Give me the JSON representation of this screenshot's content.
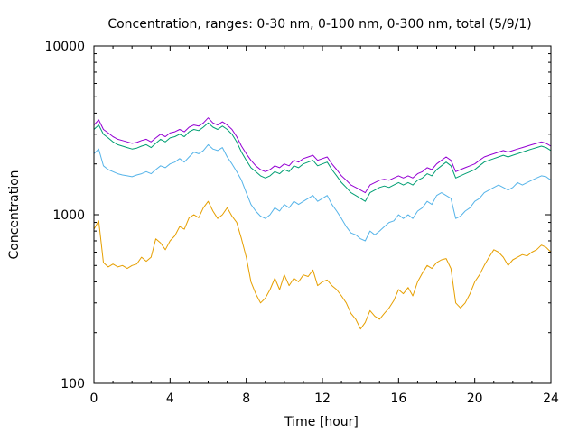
{
  "chart_data": {
    "type": "line",
    "title": "Concentration, ranges: 0-30 nm, 0-100 nm, 0-300 nm, total (5/9/1)",
    "xlabel": "Time [hour]",
    "ylabel": "Concentration",
    "xlim": [
      0,
      24
    ],
    "ylim": [
      100,
      10000
    ],
    "yscale": "log",
    "grid": false,
    "xticks": [
      0,
      4,
      8,
      12,
      16,
      20,
      24
    ],
    "xtick_labels": [
      "0",
      "4",
      "8",
      "12",
      "16",
      "20",
      "24"
    ],
    "yticks": [
      100,
      1000,
      10000
    ],
    "ytick_labels": [
      "100",
      "1000",
      "10000"
    ],
    "series": [
      {
        "color": "#e69f00",
        "x": [
          0,
          0.25,
          0.5,
          0.75,
          1,
          1.25,
          1.5,
          1.75,
          2,
          2.25,
          2.5,
          2.75,
          3,
          3.25,
          3.5,
          3.75,
          4,
          4.25,
          4.5,
          4.75,
          5,
          5.25,
          5.5,
          5.75,
          6,
          6.25,
          6.5,
          6.75,
          7,
          7.25,
          7.5,
          7.75,
          8,
          8.25,
          8.5,
          8.75,
          9,
          9.25,
          9.5,
          9.75,
          10,
          10.25,
          10.5,
          10.75,
          11,
          11.25,
          11.5,
          11.75,
          12,
          12.25,
          12.5,
          12.75,
          13,
          13.25,
          13.5,
          13.75,
          14,
          14.25,
          14.5,
          14.75,
          15,
          15.25,
          15.5,
          15.75,
          16,
          16.25,
          16.5,
          16.75,
          17,
          17.25,
          17.5,
          17.75,
          18,
          18.25,
          18.5,
          18.75,
          19,
          19.25,
          19.5,
          19.75,
          20,
          20.25,
          20.5,
          20.75,
          21,
          21.25,
          21.5,
          21.75,
          22,
          22.25,
          22.5,
          22.75,
          23,
          23.25,
          23.5,
          23.75,
          24
        ],
        "y": [
          820,
          920,
          520,
          490,
          510,
          490,
          500,
          480,
          500,
          510,
          560,
          530,
          560,
          720,
          680,
          620,
          700,
          750,
          850,
          820,
          960,
          1000,
          960,
          1100,
          1200,
          1050,
          950,
          1000,
          1100,
          980,
          900,
          720,
          560,
          400,
          340,
          300,
          320,
          360,
          420,
          360,
          440,
          380,
          420,
          400,
          440,
          430,
          470,
          380,
          400,
          410,
          380,
          360,
          330,
          300,
          260,
          240,
          210,
          230,
          270,
          250,
          240,
          260,
          280,
          310,
          360,
          340,
          370,
          330,
          400,
          450,
          500,
          480,
          520,
          540,
          550,
          480,
          300,
          280,
          300,
          340,
          400,
          440,
          500,
          560,
          620,
          600,
          560,
          500,
          540,
          560,
          580,
          570,
          600,
          620,
          660,
          640,
          600
        ]
      },
      {
        "color": "#56b4e9",
        "x": [
          0,
          0.25,
          0.5,
          0.75,
          1,
          1.25,
          1.5,
          1.75,
          2,
          2.25,
          2.5,
          2.75,
          3,
          3.25,
          3.5,
          3.75,
          4,
          4.25,
          4.5,
          4.75,
          5,
          5.25,
          5.5,
          5.75,
          6,
          6.25,
          6.5,
          6.75,
          7,
          7.25,
          7.5,
          7.75,
          8,
          8.25,
          8.5,
          8.75,
          9,
          9.25,
          9.5,
          9.75,
          10,
          10.25,
          10.5,
          10.75,
          11,
          11.25,
          11.5,
          11.75,
          12,
          12.25,
          12.5,
          12.75,
          13,
          13.25,
          13.5,
          13.75,
          14,
          14.25,
          14.5,
          14.75,
          15,
          15.25,
          15.5,
          15.75,
          16,
          16.25,
          16.5,
          16.75,
          17,
          17.25,
          17.5,
          17.75,
          18,
          18.25,
          18.5,
          18.75,
          19,
          19.25,
          19.5,
          19.75,
          20,
          20.25,
          20.5,
          20.75,
          21,
          21.25,
          21.5,
          21.75,
          22,
          22.25,
          22.5,
          22.75,
          23,
          23.25,
          23.5,
          23.75,
          24
        ],
        "y": [
          2300,
          2450,
          1950,
          1850,
          1800,
          1750,
          1720,
          1700,
          1680,
          1720,
          1750,
          1800,
          1750,
          1850,
          1950,
          1900,
          2000,
          2050,
          2150,
          2050,
          2200,
          2350,
          2300,
          2400,
          2600,
          2450,
          2400,
          2500,
          2200,
          2000,
          1800,
          1600,
          1350,
          1150,
          1050,
          980,
          950,
          1000,
          1100,
          1050,
          1150,
          1100,
          1200,
          1150,
          1200,
          1250,
          1300,
          1200,
          1250,
          1300,
          1150,
          1050,
          950,
          850,
          780,
          760,
          720,
          700,
          800,
          760,
          800,
          850,
          900,
          920,
          1000,
          950,
          1000,
          950,
          1050,
          1100,
          1200,
          1150,
          1300,
          1350,
          1300,
          1250,
          950,
          980,
          1050,
          1100,
          1200,
          1250,
          1350,
          1400,
          1450,
          1500,
          1450,
          1400,
          1450,
          1550,
          1500,
          1550,
          1600,
          1650,
          1700,
          1680,
          1600
        ]
      },
      {
        "color": "#009e73",
        "x": [
          0,
          0.25,
          0.5,
          0.75,
          1,
          1.25,
          1.5,
          1.75,
          2,
          2.25,
          2.5,
          2.75,
          3,
          3.25,
          3.5,
          3.75,
          4,
          4.25,
          4.5,
          4.75,
          5,
          5.25,
          5.5,
          5.75,
          6,
          6.25,
          6.5,
          6.75,
          7,
          7.25,
          7.5,
          7.75,
          8,
          8.25,
          8.5,
          8.75,
          9,
          9.25,
          9.5,
          9.75,
          10,
          10.25,
          10.5,
          10.75,
          11,
          11.25,
          11.5,
          11.75,
          12,
          12.25,
          12.5,
          12.75,
          13,
          13.25,
          13.5,
          13.75,
          14,
          14.25,
          14.5,
          14.75,
          15,
          15.25,
          15.5,
          15.75,
          16,
          16.25,
          16.5,
          16.75,
          17,
          17.25,
          17.5,
          17.75,
          18,
          18.25,
          18.5,
          18.75,
          19,
          19.25,
          19.5,
          19.75,
          20,
          20.25,
          20.5,
          20.75,
          21,
          21.25,
          21.5,
          21.75,
          22,
          22.25,
          22.5,
          22.75,
          23,
          23.25,
          23.5,
          23.75,
          24
        ],
        "y": [
          3200,
          3400,
          3000,
          2850,
          2700,
          2600,
          2550,
          2500,
          2450,
          2480,
          2550,
          2600,
          2500,
          2650,
          2800,
          2700,
          2850,
          2900,
          3000,
          2900,
          3100,
          3200,
          3150,
          3300,
          3500,
          3300,
          3200,
          3350,
          3200,
          3000,
          2700,
          2350,
          2100,
          1900,
          1800,
          1700,
          1650,
          1700,
          1800,
          1750,
          1850,
          1800,
          1950,
          1900,
          2000,
          2050,
          2100,
          1950,
          2000,
          2050,
          1850,
          1700,
          1550,
          1450,
          1350,
          1300,
          1250,
          1200,
          1350,
          1400,
          1450,
          1480,
          1450,
          1500,
          1550,
          1500,
          1550,
          1500,
          1600,
          1650,
          1750,
          1700,
          1850,
          1950,
          2050,
          1950,
          1650,
          1700,
          1750,
          1800,
          1850,
          1950,
          2050,
          2100,
          2150,
          2200,
          2250,
          2200,
          2250,
          2300,
          2350,
          2400,
          2450,
          2500,
          2550,
          2500,
          2400
        ]
      },
      {
        "color": "#9400d3",
        "x": [
          0,
          0.25,
          0.5,
          0.75,
          1,
          1.25,
          1.5,
          1.75,
          2,
          2.25,
          2.5,
          2.75,
          3,
          3.25,
          3.5,
          3.75,
          4,
          4.25,
          4.5,
          4.75,
          5,
          5.25,
          5.5,
          5.75,
          6,
          6.25,
          6.5,
          6.75,
          7,
          7.25,
          7.5,
          7.75,
          8,
          8.25,
          8.5,
          8.75,
          9,
          9.25,
          9.5,
          9.75,
          10,
          10.25,
          10.5,
          10.75,
          11,
          11.25,
          11.5,
          11.75,
          12,
          12.25,
          12.5,
          12.75,
          13,
          13.25,
          13.5,
          13.75,
          14,
          14.25,
          14.5,
          14.75,
          15,
          15.25,
          15.5,
          15.75,
          16,
          16.25,
          16.5,
          16.75,
          17,
          17.25,
          17.5,
          17.75,
          18,
          18.25,
          18.5,
          18.75,
          19,
          19.25,
          19.5,
          19.75,
          20,
          20.25,
          20.5,
          20.75,
          21,
          21.25,
          21.5,
          21.75,
          22,
          22.25,
          22.5,
          22.75,
          23,
          23.25,
          23.5,
          23.75,
          24
        ],
        "y": [
          3400,
          3650,
          3200,
          3050,
          2900,
          2800,
          2750,
          2700,
          2650,
          2680,
          2750,
          2800,
          2700,
          2850,
          3000,
          2900,
          3050,
          3100,
          3200,
          3100,
          3300,
          3400,
          3350,
          3500,
          3750,
          3500,
          3400,
          3550,
          3400,
          3200,
          2900,
          2550,
          2300,
          2100,
          1950,
          1850,
          1800,
          1850,
          1950,
          1900,
          2000,
          1950,
          2100,
          2050,
          2150,
          2200,
          2250,
          2100,
          2150,
          2200,
          2000,
          1850,
          1700,
          1600,
          1500,
          1450,
          1400,
          1350,
          1500,
          1550,
          1600,
          1620,
          1600,
          1650,
          1700,
          1650,
          1700,
          1650,
          1750,
          1800,
          1900,
          1850,
          2000,
          2100,
          2200,
          2100,
          1800,
          1850,
          1900,
          1950,
          2000,
          2100,
          2200,
          2250,
          2300,
          2350,
          2400,
          2350,
          2400,
          2450,
          2500,
          2550,
          2600,
          2650,
          2700,
          2650,
          2550
        ]
      }
    ]
  }
}
